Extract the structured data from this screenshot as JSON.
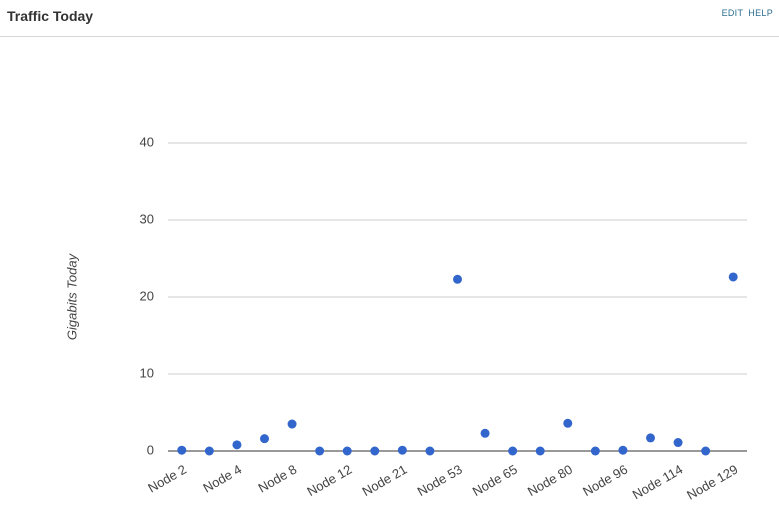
{
  "header": {
    "title": "Traffic Today",
    "links": [
      "EDIT",
      "HELP"
    ]
  },
  "chart_data": {
    "type": "scatter",
    "y_label": "Gigabits Today",
    "categories": [
      "Node 2",
      null,
      "Node 4",
      null,
      "Node 8",
      null,
      "Node 12",
      null,
      "Node 21",
      null,
      "Node 53",
      null,
      "Node 65",
      null,
      "Node 80",
      null,
      "Node 96",
      null,
      "Node 114",
      null,
      "Node 129"
    ],
    "values": [
      0.1,
      0,
      0.8,
      1.6,
      3.5,
      0,
      0,
      0,
      0.1,
      0,
      22.3,
      2.3,
      0,
      0,
      3.6,
      0,
      0.1,
      1.7,
      1.1,
      0,
      22.6
    ],
    "color": "#3366cc",
    "ylim": [
      0,
      40
    ],
    "yticks": [
      0,
      10,
      20,
      30,
      40
    ],
    "grid": true
  }
}
